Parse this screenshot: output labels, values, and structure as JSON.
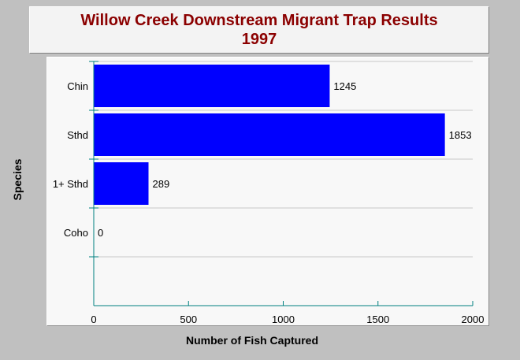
{
  "chart_data": {
    "type": "bar",
    "orientation": "horizontal",
    "title": "Willow Creek Downstream Migrant Trap Results",
    "subtitle": "1997",
    "xlabel": "Number of Fish Captured",
    "ylabel": "Species",
    "categories": [
      "Chin",
      "Sthd",
      "1+ Sthd",
      "Coho"
    ],
    "values": [
      1245,
      1853,
      289,
      0
    ],
    "data_labels": [
      "1245",
      "1853",
      "289",
      "0"
    ],
    "xlim": [
      0,
      2000
    ],
    "x_ticks": [
      0,
      500,
      1000,
      1500,
      2000
    ],
    "x_tick_labels": [
      "0",
      "500",
      "1000",
      "1500",
      "2000"
    ],
    "grid": "horizontal",
    "legend": "none",
    "bar_color": "#0000ff",
    "axis_color": "#008080",
    "title_color": "#8b0000"
  }
}
